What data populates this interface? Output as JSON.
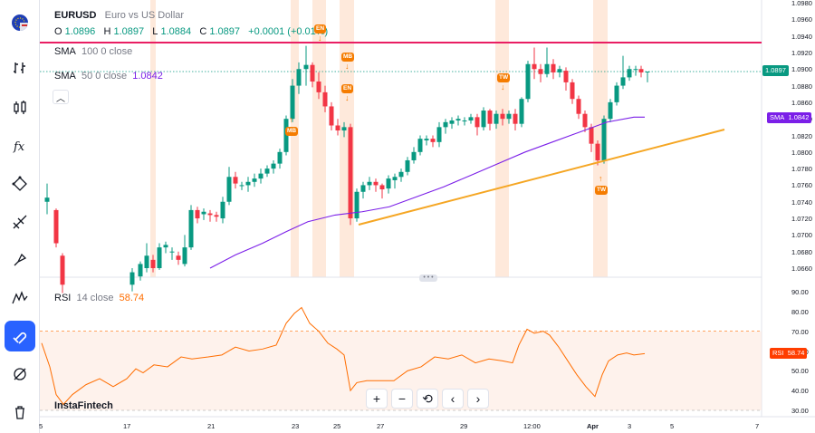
{
  "symbol": {
    "ticker": "EURUSD",
    "name": "Euro vs US Dollar",
    "o_label": "O",
    "o": "1.0896",
    "h_label": "H",
    "h": "1.0897",
    "l_label": "L",
    "l": "1.0884",
    "c_label": "C",
    "c": "1.0897",
    "change": "+0.0001 (+0.01%)"
  },
  "indicators": {
    "sma100": {
      "name": "SMA",
      "params": "100 0 close"
    },
    "sma50": {
      "name": "SMA",
      "params": "50 0 close",
      "value": "1.0842"
    },
    "rsi": {
      "name": "RSI",
      "params": "14 close",
      "value": "58.74"
    }
  },
  "price_axis": {
    "ticks": [
      "1.0960",
      "1.0940",
      "1.0920",
      "1.0900",
      "1.0880",
      "1.0860",
      "1.0840",
      "1.0820",
      "1.0800",
      "1.0780",
      "1.0760",
      "1.0740",
      "1.0720",
      "1.0700",
      "1.0680",
      "1.0660"
    ],
    "first_tick": "1.0980",
    "current_price": "1.0897",
    "sma_badge_label": "SMA",
    "sma_badge_value": "1.0842"
  },
  "rsi_axis": {
    "ticks": [
      "90.00",
      "80.00",
      "70.00",
      "60.00",
      "50.00",
      "40.00",
      "30.00"
    ],
    "badge_label": "RSI",
    "badge_value": "58.74"
  },
  "time_axis": {
    "labels": [
      "5",
      "17",
      "21",
      "23",
      "25",
      "27",
      "29",
      "12:00",
      "Apr",
      "3",
      "5",
      "7"
    ]
  },
  "markers": [
    "EN",
    "MB",
    "EN",
    "MB",
    "TW",
    "TW"
  ],
  "watermark": "InstaFintech",
  "nav_buttons": [
    "+",
    "−",
    "⟲",
    "‹",
    "›"
  ],
  "sidebar": {
    "items": [
      "logo",
      "chart-type",
      "bars",
      "indicators",
      "patterns",
      "drawing",
      "brush",
      "waves",
      "magnet",
      "eye-hide",
      "trash"
    ]
  },
  "colors": {
    "bull": "#089981",
    "bear": "#f23645",
    "sma50": "#7b1fe8",
    "trendline": "#f5a623",
    "resistance": "#e91e63",
    "rsi": "#ff6d00",
    "highlight": "#fde2cf",
    "accent": "#2962ff"
  }
}
